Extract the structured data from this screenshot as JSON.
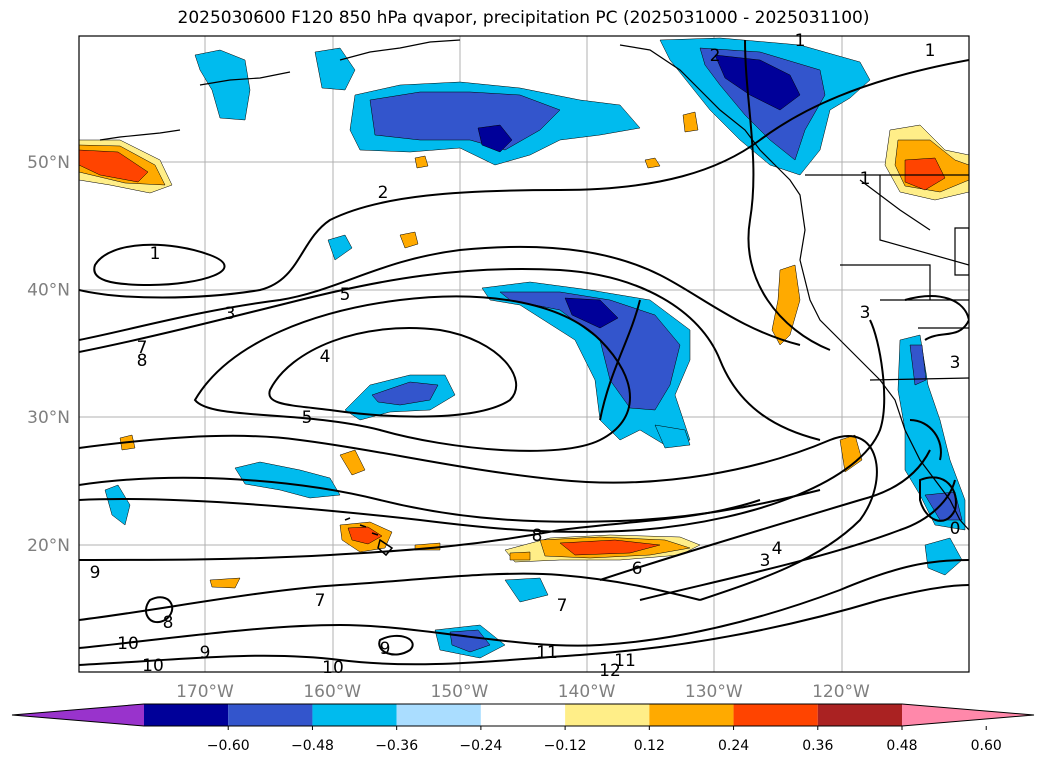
{
  "title": "2025030600 F120 850 hPa qvapor, precipitation PC (2025031000 - 2025031100)",
  "lat_labels": [
    {
      "text": "50°N",
      "lat": 50
    },
    {
      "text": "40°N",
      "lat": 40
    },
    {
      "text": "30°N",
      "lat": 30
    },
    {
      "text": "20°N",
      "lat": 20
    }
  ],
  "lon_labels": [
    {
      "text": "170°W",
      "lon": -170
    },
    {
      "text": "160°W",
      "lon": -160
    },
    {
      "text": "150°W",
      "lon": -150
    },
    {
      "text": "140°W",
      "lon": -140
    },
    {
      "text": "130°W",
      "lon": -130
    },
    {
      "text": "120°W",
      "lon": -120
    }
  ],
  "contour_labels": [
    "1",
    "1",
    "1",
    "2",
    "2",
    "1",
    "3",
    "7",
    "8",
    "5",
    "4",
    "5",
    "8",
    "6",
    "3",
    "4",
    "7",
    "9",
    "7",
    "8",
    "9",
    "10",
    "9",
    "11",
    "10",
    "10",
    "11",
    "12",
    "3",
    "3",
    "0"
  ],
  "colorbar": {
    "colors": [
      "#9933cc",
      "#000099",
      "#3355cc",
      "#00bbee",
      "#aaddff",
      "#ffffff",
      "#ffee88",
      "#ffaa00",
      "#ff4400",
      "#aa2222",
      "#ff88aa"
    ],
    "tick_labels": [
      "−0.60",
      "−0.48",
      "−0.36",
      "−0.24",
      "−0.12",
      "0.12",
      "0.24",
      "0.36",
      "0.48",
      "0.60"
    ]
  }
}
